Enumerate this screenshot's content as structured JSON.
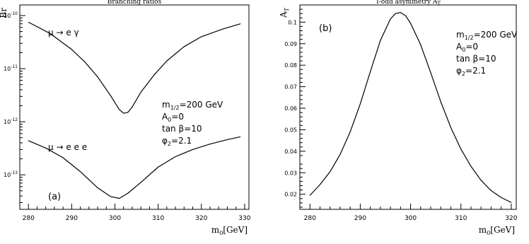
{
  "chart_data": [
    {
      "type": "line",
      "title": "Branching ratios",
      "panel_label": "(a)",
      "xlabel": "m",
      "xlabel_sub": "0",
      "xlabel_unit": "[GeV]",
      "ylabel": "Br",
      "xlim": [
        278,
        331
      ],
      "ylim_exponent": [
        -13.65,
        -9.8
      ],
      "yscale": "log",
      "xticks": [
        280,
        290,
        300,
        310,
        320,
        330
      ],
      "yticks": [
        {
          "value": 1e-10,
          "label": "10",
          "sup": "-10"
        },
        {
          "value": 1e-11,
          "label": "10",
          "sup": "-11"
        },
        {
          "value": 1e-12,
          "label": "10",
          "sup": "-12"
        },
        {
          "value": 1e-13,
          "label": "10",
          "sup": "-13"
        }
      ],
      "params": [
        {
          "prefix": "m",
          "sub": "1/2",
          "suffix": "=200 GeV"
        },
        {
          "prefix": "A",
          "sub": "0",
          "suffix": "=0"
        },
        {
          "prefix": "tan β",
          "sub": "",
          "suffix": "=10"
        },
        {
          "prefix": "φ",
          "sub": "2",
          "suffix": "=2.1"
        }
      ],
      "series": [
        {
          "label_text": "μ → e γ",
          "x": [
            280,
            285,
            290,
            293,
            296,
            299,
            301,
            302,
            303,
            304,
            306,
            309,
            312,
            316,
            320,
            325,
            329
          ],
          "y": [
            7.5e-11,
            4.6e-11,
            2.3e-11,
            1.35e-11,
            7e-12,
            3.1e-12,
            1.7e-12,
            1.45e-12,
            1.5e-12,
            1.9e-12,
            3.6e-12,
            7.5e-12,
            1.4e-11,
            2.6e-11,
            4e-11,
            5.6e-11,
            7e-11
          ]
        },
        {
          "label_text": "μ → e e e",
          "x": [
            280,
            284,
            288,
            292,
            296,
            299,
            301,
            303,
            306,
            310,
            314,
            318,
            322,
            326,
            329
          ],
          "y": [
            4.4e-13,
            3.2e-13,
            2.1e-13,
            1.15e-13,
            5.7e-14,
            3.9e-14,
            3.6e-14,
            4.5e-14,
            7.2e-14,
            1.4e-13,
            2.2e-13,
            3e-13,
            3.8e-13,
            4.6e-13,
            5.2e-13
          ]
        }
      ]
    },
    {
      "type": "line",
      "title": "T-odd asymmetry A",
      "title_sub": "T",
      "panel_label": "(b)",
      "xlabel": "m",
      "xlabel_sub": "0",
      "xlabel_unit": "[GeV]",
      "ylabel": "A",
      "ylabel_sub": "T",
      "xlim": [
        278,
        321
      ],
      "ylim": [
        0.013,
        0.108
      ],
      "xticks": [
        280,
        290,
        300,
        310,
        320
      ],
      "yticks": [
        0.02,
        0.03,
        0.04,
        0.05,
        0.06,
        0.07,
        0.08,
        0.09,
        0.1
      ],
      "params": [
        {
          "prefix": "m",
          "sub": "1/2",
          "suffix": "=200 GeV"
        },
        {
          "prefix": "A",
          "sub": "0",
          "suffix": "=0"
        },
        {
          "prefix": "tan β",
          "sub": "",
          "suffix": "=10"
        },
        {
          "prefix": "φ",
          "sub": "2",
          "suffix": "=2.1"
        }
      ],
      "series": [
        {
          "x": [
            280,
            282,
            284,
            286,
            288,
            290,
            292,
            294,
            296,
            297,
            298,
            299,
            300,
            302,
            304,
            306,
            308,
            310,
            312,
            314,
            316,
            318,
            320
          ],
          "y": [
            0.0195,
            0.0245,
            0.0305,
            0.0385,
            0.049,
            0.062,
            0.077,
            0.0915,
            0.1015,
            0.104,
            0.1045,
            0.103,
            0.0995,
            0.0895,
            0.0765,
            0.063,
            0.051,
            0.041,
            0.033,
            0.0265,
            0.0217,
            0.0185,
            0.0162
          ]
        }
      ]
    }
  ]
}
